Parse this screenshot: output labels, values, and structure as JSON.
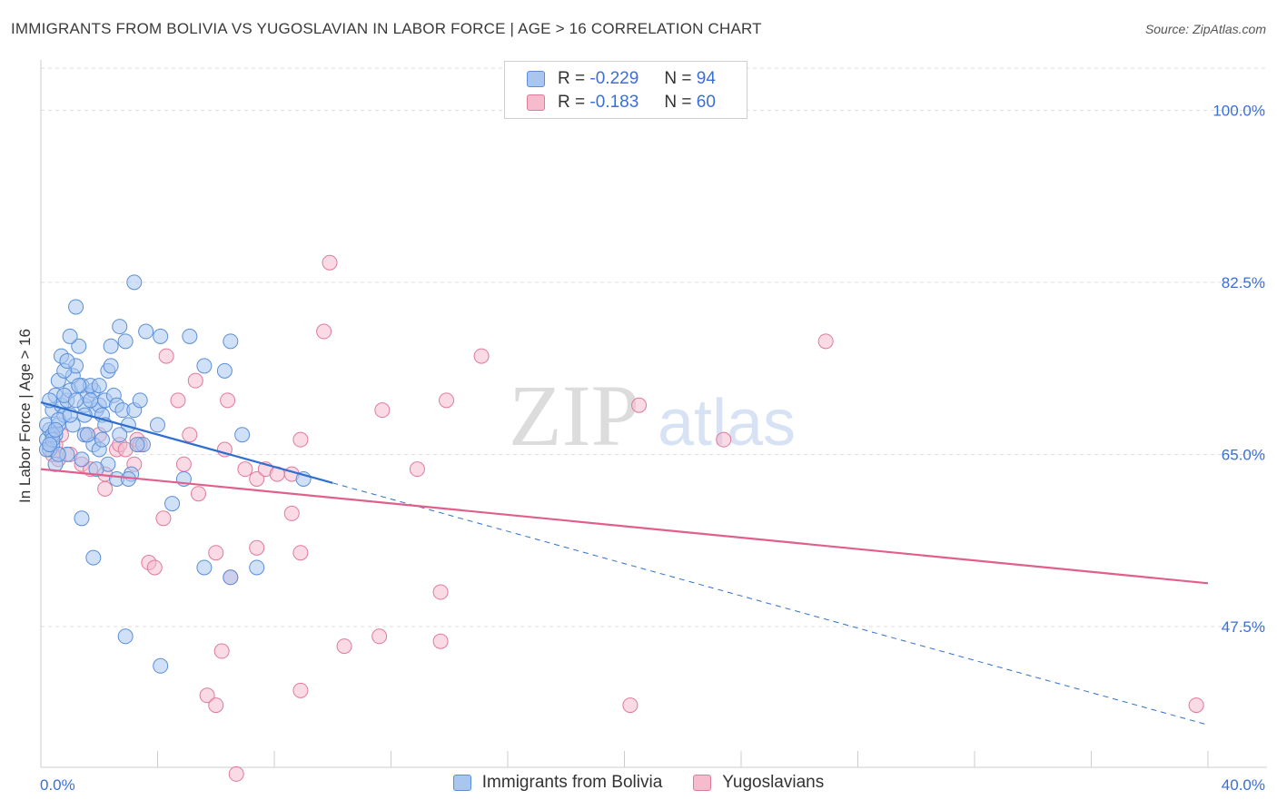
{
  "header": {
    "title": "IMMIGRANTS FROM BOLIVIA VS YUGOSLAVIAN IN LABOR FORCE | AGE > 16 CORRELATION CHART",
    "source": "Source: ZipAtlas.com"
  },
  "watermark": {
    "zip": "ZIP",
    "atlas": "atlas"
  },
  "legend": {
    "r_label": "R =",
    "n_label": "N =",
    "series": [
      {
        "r": "-0.229",
        "n": "94"
      },
      {
        "r": "-0.183",
        "n": "60"
      }
    ]
  },
  "colors": {
    "blue_fill": "#a9c6f0",
    "blue_stroke": "#5a8fd8",
    "blue_line": "#2f6fd0",
    "pink_fill": "#f6bccd",
    "pink_stroke": "#e07a9c",
    "pink_line": "#e0608a",
    "tick_label": "#3a6fd8",
    "grid": "#dddddd"
  },
  "chart_data": {
    "type": "scatter",
    "ylabel": "In Labor Force | Age > 16",
    "xlabel": "",
    "xlim": [
      0,
      40
    ],
    "ylim": [
      33,
      104
    ],
    "x_tick_labels": [
      "0.0%",
      "40.0%"
    ],
    "y_ticks": [
      {
        "value": 47.5,
        "label": "47.5%"
      },
      {
        "value": 65.0,
        "label": "65.0%"
      },
      {
        "value": 82.5,
        "label": "82.5%"
      },
      {
        "value": 100.0,
        "label": "100.0%"
      }
    ],
    "grid": "horizontal dashed",
    "series": [
      {
        "name": "Immigrants from Bolivia",
        "color": "blue",
        "trend": {
          "x0": 0,
          "y0": 70.3,
          "x1": 10,
          "y1": 62.1,
          "dashed_to_x": 40,
          "dashed_to_y": 37.5
        },
        "points": [
          [
            0.2,
            66.5
          ],
          [
            0.3,
            67.5
          ],
          [
            0.2,
            68
          ],
          [
            0.4,
            66
          ],
          [
            0.5,
            67
          ],
          [
            0.3,
            65.5
          ],
          [
            0.6,
            68
          ],
          [
            0.4,
            69.5
          ],
          [
            0.5,
            71
          ],
          [
            0.6,
            72.5
          ],
          [
            0.7,
            70
          ],
          [
            0.8,
            69
          ],
          [
            0.9,
            70.5
          ],
          [
            1.0,
            71.5
          ],
          [
            1.1,
            73
          ],
          [
            1.2,
            74
          ],
          [
            0.7,
            75
          ],
          [
            0.8,
            73.5
          ],
          [
            1.3,
            76
          ],
          [
            1.0,
            77
          ],
          [
            1.4,
            72
          ],
          [
            1.5,
            70
          ],
          [
            1.6,
            71
          ],
          [
            1.8,
            71.5
          ],
          [
            1.7,
            72
          ],
          [
            1.9,
            69.5
          ],
          [
            2.0,
            70
          ],
          [
            2.1,
            69
          ],
          [
            2.2,
            70.5
          ],
          [
            2.3,
            73.5
          ],
          [
            2.5,
            71
          ],
          [
            2.6,
            70
          ],
          [
            2.8,
            69.5
          ],
          [
            3.0,
            68
          ],
          [
            3.2,
            69.5
          ],
          [
            3.4,
            70.5
          ],
          [
            2.4,
            76
          ],
          [
            2.9,
            76.5
          ],
          [
            3.6,
            77.5
          ],
          [
            4.1,
            77
          ],
          [
            5.1,
            77
          ],
          [
            6.5,
            76.5
          ],
          [
            5.6,
            74
          ],
          [
            6.3,
            73.5
          ],
          [
            1.2,
            80
          ],
          [
            3.2,
            82.5
          ],
          [
            2.7,
            78
          ],
          [
            1.5,
            67
          ],
          [
            1.8,
            66
          ],
          [
            2.0,
            65.5
          ],
          [
            2.3,
            64
          ],
          [
            2.6,
            62.5
          ],
          [
            3.1,
            63
          ],
          [
            3.5,
            66
          ],
          [
            1.4,
            64.5
          ],
          [
            0.9,
            65
          ],
          [
            0.5,
            64
          ],
          [
            1.1,
            68
          ],
          [
            1.6,
            67
          ],
          [
            2.1,
            66.5
          ],
          [
            4.5,
            60
          ],
          [
            1.4,
            58.5
          ],
          [
            1.8,
            54.5
          ],
          [
            5.6,
            53.5
          ],
          [
            6.5,
            52.5
          ],
          [
            7.4,
            53.5
          ],
          [
            2.9,
            46.5
          ],
          [
            4.1,
            43.5
          ],
          [
            4.0,
            68
          ],
          [
            4.9,
            62.5
          ],
          [
            6.9,
            67
          ],
          [
            9.0,
            62.5
          ],
          [
            1.9,
            63.5
          ],
          [
            3.0,
            62.5
          ],
          [
            0.3,
            70.5
          ],
          [
            0.4,
            67
          ],
          [
            0.6,
            65
          ],
          [
            0.9,
            74.5
          ],
          [
            1.3,
            72
          ],
          [
            1.7,
            70.5
          ],
          [
            0.2,
            65.5
          ],
          [
            0.4,
            66.5
          ],
          [
            0.8,
            71
          ],
          [
            1.5,
            69
          ],
          [
            2.2,
            68
          ],
          [
            2.7,
            67
          ],
          [
            3.3,
            66
          ],
          [
            0.6,
            68.5
          ],
          [
            1.0,
            69
          ],
          [
            0.3,
            66
          ],
          [
            1.2,
            70.5
          ],
          [
            2.0,
            72
          ],
          [
            2.4,
            74
          ],
          [
            0.5,
            67.5
          ]
        ]
      },
      {
        "name": "Yugoslavians",
        "color": "pink",
        "trend": {
          "x0": 0,
          "y0": 63.5,
          "x1": 40,
          "y1": 51.9
        },
        "points": [
          [
            0.3,
            65.5
          ],
          [
            0.5,
            66
          ],
          [
            0.6,
            64.5
          ],
          [
            0.4,
            65
          ],
          [
            1.6,
            67
          ],
          [
            1.4,
            64
          ],
          [
            1.7,
            63.5
          ],
          [
            2.2,
            63
          ],
          [
            2.2,
            61.5
          ],
          [
            2.6,
            65.5
          ],
          [
            2.7,
            66
          ],
          [
            2.9,
            65.5
          ],
          [
            3.2,
            64
          ],
          [
            3.3,
            66.5
          ],
          [
            3.4,
            66
          ],
          [
            4.9,
            64
          ],
          [
            5.1,
            67
          ],
          [
            5.4,
            61
          ],
          [
            4.2,
            58.5
          ],
          [
            3.7,
            54
          ],
          [
            3.9,
            53.5
          ],
          [
            6.0,
            55
          ],
          [
            6.5,
            52.5
          ],
          [
            7.0,
            63.5
          ],
          [
            7.4,
            62.5
          ],
          [
            7.7,
            63.5
          ],
          [
            8.1,
            63
          ],
          [
            8.6,
            63
          ],
          [
            8.6,
            59
          ],
          [
            8.9,
            55
          ],
          [
            7.4,
            55.5
          ],
          [
            6.3,
            65.5
          ],
          [
            6.4,
            70.5
          ],
          [
            5.3,
            72.5
          ],
          [
            4.7,
            70.5
          ],
          [
            4.3,
            75
          ],
          [
            8.9,
            66.5
          ],
          [
            9.7,
            77.5
          ],
          [
            9.9,
            84.5
          ],
          [
            11.7,
            69.5
          ],
          [
            12.9,
            63.5
          ],
          [
            13.9,
            70.5
          ],
          [
            15.1,
            75
          ],
          [
            20.5,
            70
          ],
          [
            23.4,
            66.5
          ],
          [
            26.9,
            76.5
          ],
          [
            13.7,
            51
          ],
          [
            11.6,
            46.5
          ],
          [
            10.4,
            45.5
          ],
          [
            13.7,
            46
          ],
          [
            6.2,
            45
          ],
          [
            5.7,
            40.5
          ],
          [
            6.0,
            39.5
          ],
          [
            8.9,
            41
          ],
          [
            6.7,
            32.5
          ],
          [
            20.2,
            39.5
          ],
          [
            39.6,
            39.5
          ],
          [
            0.7,
            67
          ],
          [
            1.0,
            65
          ],
          [
            2.0,
            67
          ]
        ]
      }
    ]
  }
}
